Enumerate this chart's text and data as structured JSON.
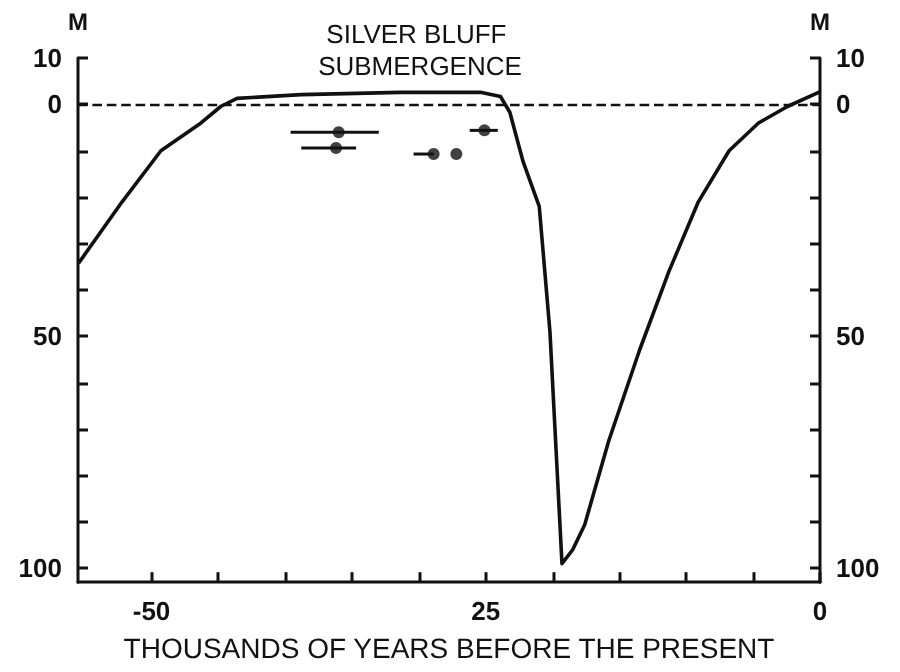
{
  "chart_data": {
    "type": "line",
    "title": "SILVER BLUFF SUBMERGENCE",
    "xlabel": "THOUSANDS OF YEARS BEFORE THE PRESENT",
    "ylabel": "M",
    "y2label": "M",
    "xlim": [
      -55.5,
      0
    ],
    "xticks": [
      -50,
      {
        "value": -45,
        "label": null
      },
      {
        "value": -40,
        "label": null
      },
      {
        "value": -35,
        "label": null
      },
      {
        "value": -30,
        "label": null
      },
      {
        "value": -25,
        "label": "25"
      },
      {
        "value": -20,
        "label": null
      },
      {
        "value": -15,
        "label": null
      },
      {
        "value": -10,
        "label": null
      },
      {
        "value": -5,
        "label": null
      },
      0
    ],
    "ylim": [
      103,
      -10
    ],
    "yticks": [
      {
        "value": -10,
        "label": "10"
      },
      0,
      {
        "value": 10,
        "label": null
      },
      {
        "value": 20,
        "label": null
      },
      {
        "value": 30,
        "label": null
      },
      {
        "value": 40,
        "label": null
      },
      50,
      {
        "value": 60,
        "label": null
      },
      {
        "value": 70,
        "label": null
      },
      {
        "value": 80,
        "label": null
      },
      {
        "value": 90,
        "label": null
      },
      100
    ],
    "y2lim": [
      103,
      -10
    ],
    "y2ticks": [
      {
        "value": -10,
        "label": "10"
      },
      0,
      {
        "value": 10,
        "label": null
      },
      {
        "value": 20,
        "label": null
      },
      {
        "value": 30,
        "label": null
      },
      {
        "value": 40,
        "label": null
      },
      50,
      {
        "value": 60,
        "label": null
      },
      {
        "value": 70,
        "label": null
      },
      {
        "value": 80,
        "label": null
      },
      {
        "value": 90,
        "label": null
      },
      100
    ],
    "ref_lines": [
      {
        "axis": "y",
        "value": 0,
        "line_style": "dashed",
        "color": "#111111"
      }
    ],
    "grid": false,
    "series": [
      {
        "type": "line",
        "color": "#111111",
        "marker": "none",
        "line_style": "solid",
        "x": [
          -55.4,
          -52.2,
          -49.3,
          -46.3,
          -44.8,
          -43.6,
          -38.8,
          -31.4,
          -25.4,
          -23.9,
          -23.2,
          -22.2,
          -21,
          -20.2,
          -19.3,
          -18.5,
          -17.6,
          -15.8,
          -13.5,
          -11.3,
          -9.1,
          -6.8,
          -4.6,
          -2.4,
          -0.1
        ],
        "values": [
          34,
          21,
          10,
          4,
          0.4,
          -1.3,
          -2.1,
          -2.6,
          -2.6,
          -1.7,
          1.7,
          12.4,
          22,
          49,
          99,
          96,
          90.6,
          72.5,
          53,
          36,
          21,
          10,
          4,
          0.4,
          -2.6
        ]
      },
      {
        "type": "scatter",
        "color": "#111111",
        "marker": "circle",
        "x": [
          -36,
          -36.2,
          -25.1,
          -28.9,
          -27.2
        ],
        "values": [
          6,
          9.4,
          5.6,
          10.7,
          10.7
        ],
        "xerrors": [
          [
            -39.6,
            -33
          ],
          [
            -38.8,
            -34.7
          ],
          [
            -26.2,
            -24.1
          ],
          [
            -30.4,
            -28.9
          ],
          null
        ]
      }
    ]
  }
}
